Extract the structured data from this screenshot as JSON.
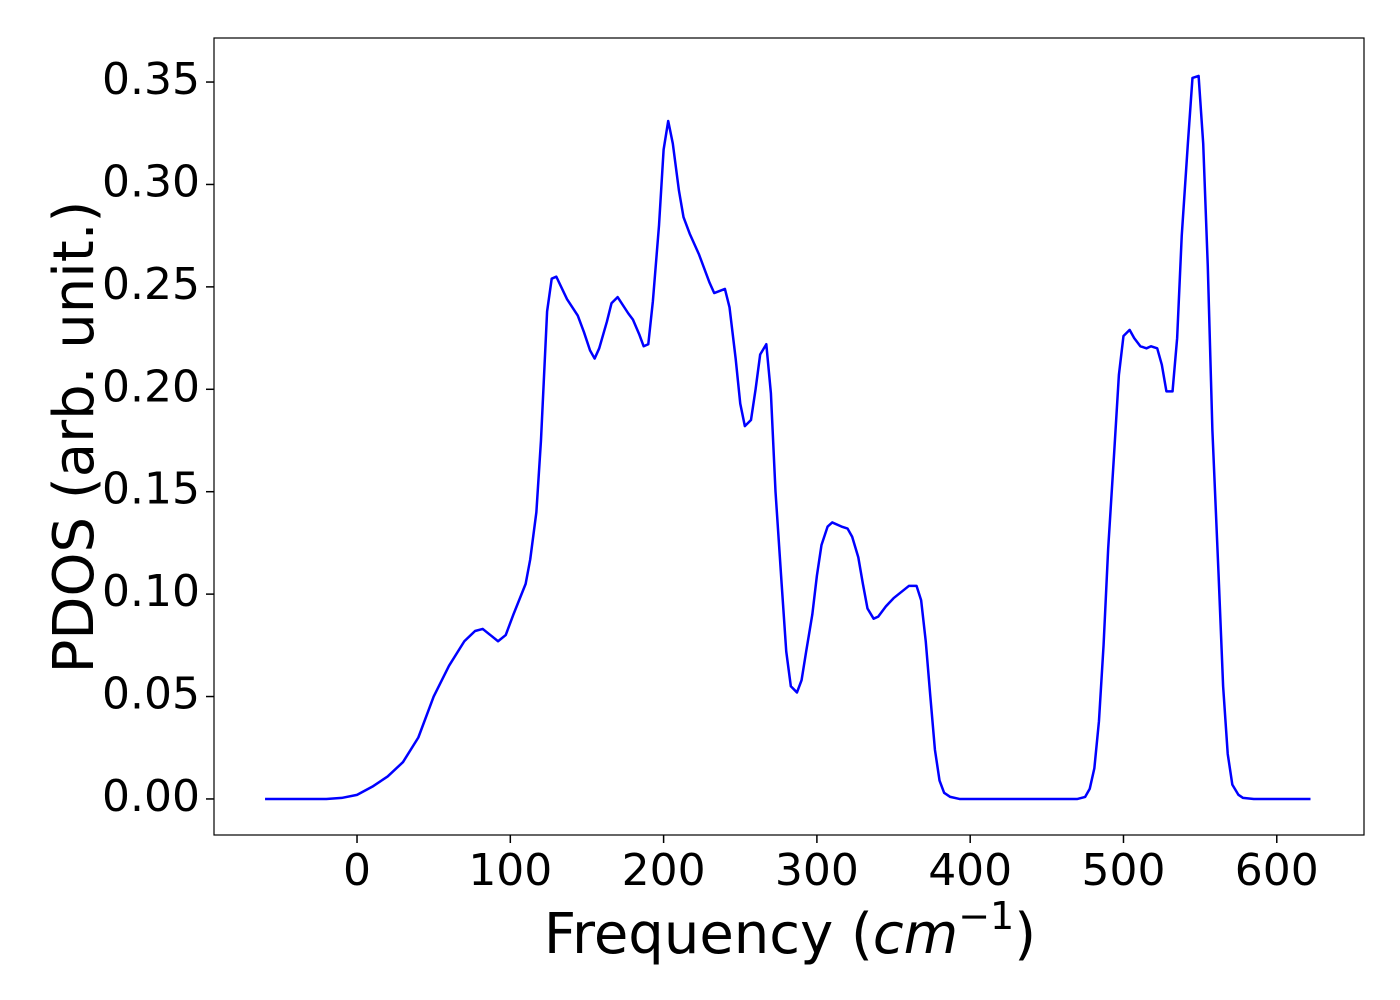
{
  "chart_data": {
    "type": "line",
    "xlabel": [
      "Frequency (",
      "cm",
      "−1",
      ")"
    ],
    "ylabel": "PDOS (arb. unit.)",
    "x": [
      -60,
      -20,
      -10,
      0,
      10,
      20,
      30,
      40,
      50,
      60,
      70,
      77,
      82,
      87,
      92,
      97,
      102,
      110,
      113,
      117,
      120,
      124,
      127,
      130,
      137,
      144,
      148,
      152,
      155,
      158,
      163,
      166,
      170,
      177,
      180,
      184,
      187,
      190,
      193,
      197,
      200,
      203,
      206,
      210,
      213,
      217,
      223,
      230,
      233,
      240,
      243,
      247,
      250,
      253,
      257,
      260,
      263,
      267,
      270,
      273,
      277,
      280,
      283,
      287,
      290,
      293,
      297,
      300,
      303,
      307,
      310,
      316,
      320,
      323,
      327,
      330,
      333,
      337,
      340,
      345,
      350,
      355,
      360,
      365,
      368,
      371,
      374,
      377,
      380,
      383,
      387,
      393,
      470,
      475,
      478,
      481,
      484,
      487,
      490,
      494,
      497,
      500,
      504,
      507,
      511,
      515,
      518,
      522,
      525,
      528,
      532,
      535,
      538,
      542,
      545,
      549,
      552,
      555,
      558,
      562,
      565,
      568,
      571,
      575,
      578,
      585,
      622
    ],
    "series": [
      {
        "name": "PDOS",
        "color": "#0000ff",
        "values": [
          0,
          0,
          0.0005,
          0.002,
          0.006,
          0.011,
          0.018,
          0.03,
          0.05,
          0.065,
          0.077,
          0.082,
          0.083,
          0.08,
          0.077,
          0.08,
          0.09,
          0.105,
          0.117,
          0.14,
          0.175,
          0.238,
          0.254,
          0.255,
          0.244,
          0.236,
          0.228,
          0.219,
          0.215,
          0.22,
          0.233,
          0.242,
          0.245,
          0.237,
          0.234,
          0.227,
          0.221,
          0.222,
          0.243,
          0.28,
          0.317,
          0.331,
          0.32,
          0.297,
          0.284,
          0.276,
          0.266,
          0.252,
          0.247,
          0.249,
          0.24,
          0.215,
          0.193,
          0.182,
          0.185,
          0.2,
          0.217,
          0.222,
          0.198,
          0.15,
          0.105,
          0.072,
          0.055,
          0.052,
          0.058,
          0.072,
          0.09,
          0.109,
          0.124,
          0.133,
          0.135,
          0.133,
          0.132,
          0.128,
          0.118,
          0.105,
          0.093,
          0.088,
          0.089,
          0.094,
          0.098,
          0.101,
          0.104,
          0.104,
          0.097,
          0.077,
          0.05,
          0.024,
          0.009,
          0.003,
          0.001,
          0,
          0,
          0.001,
          0.005,
          0.015,
          0.038,
          0.075,
          0.122,
          0.17,
          0.207,
          0.226,
          0.229,
          0.225,
          0.221,
          0.22,
          0.221,
          0.22,
          0.212,
          0.199,
          0.199,
          0.225,
          0.275,
          0.32,
          0.352,
          0.353,
          0.32,
          0.26,
          0.18,
          0.11,
          0.055,
          0.022,
          0.007,
          0.002,
          0.0005,
          0,
          0
        ]
      }
    ],
    "xlim": [
      -93.3,
      656.9
    ],
    "xticks": [
      0,
      100,
      200,
      300,
      400,
      500,
      600
    ],
    "ylim": [
      -0.0176,
      0.3715
    ],
    "yticks": [
      {
        "value": 0,
        "label": "0.00"
      },
      {
        "value": 0.05,
        "label": "0.05"
      },
      {
        "value": 0.1,
        "label": "0.10"
      },
      {
        "value": 0.15,
        "label": "0.15"
      },
      {
        "value": 0.2,
        "label": "0.20"
      },
      {
        "value": 0.25,
        "label": "0.25"
      },
      {
        "value": 0.3,
        "label": "0.30"
      },
      {
        "value": 0.35,
        "label": "0.35"
      }
    ]
  }
}
